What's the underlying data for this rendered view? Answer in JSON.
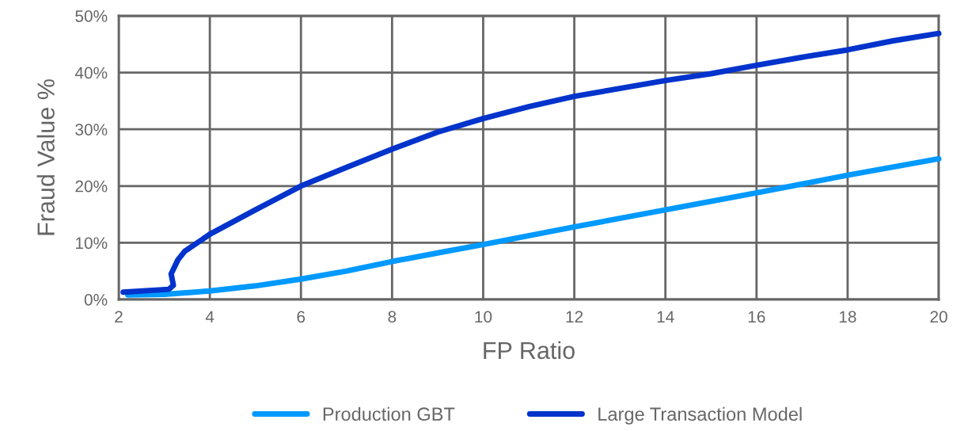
{
  "chart_data": {
    "type": "line",
    "xlabel": "FP Ratio",
    "ylabel": "Fraud Value %",
    "xlim": [
      2,
      20
    ],
    "xticks": [
      2,
      4,
      6,
      8,
      10,
      12,
      14,
      16,
      18,
      20
    ],
    "ylim": [
      0,
      50
    ],
    "yticks": [
      {
        "value": 0,
        "label": "0%"
      },
      {
        "value": 10,
        "label": "10%"
      },
      {
        "value": 20,
        "label": "20%"
      },
      {
        "value": 30,
        "label": "30%"
      },
      {
        "value": 40,
        "label": "40%"
      },
      {
        "value": 50,
        "label": "50%"
      }
    ],
    "grid": true,
    "legend": "bottom",
    "marker": "none",
    "line_style": "solid",
    "series": [
      {
        "name": "Production GBT",
        "color": "#0099ff",
        "x": [
          2.2,
          3,
          4,
          5,
          6,
          7,
          8,
          9,
          10,
          12,
          14,
          16,
          18,
          20
        ],
        "values": [
          0.8,
          0.9,
          1.5,
          2.4,
          3.6,
          5,
          6.7,
          8.2,
          9.7,
          12.8,
          15.8,
          18.8,
          21.9,
          24.8
        ]
      },
      {
        "name": "Large Transaction Model",
        "color": "#0033cc",
        "x": [
          2.1,
          3.1,
          3.2,
          3.15,
          3.3,
          3.45,
          4,
          5,
          6,
          7,
          8,
          9,
          10,
          11,
          12,
          13,
          14,
          15,
          16,
          17,
          18,
          19,
          20
        ],
        "values": [
          1.3,
          1.8,
          2.5,
          4.5,
          7,
          8.5,
          11.5,
          15.8,
          20,
          23.3,
          26.5,
          29.5,
          31.9,
          34,
          35.8,
          37.2,
          38.6,
          39.8,
          41.3,
          42.7,
          44,
          45.6,
          46.9
        ]
      }
    ]
  }
}
